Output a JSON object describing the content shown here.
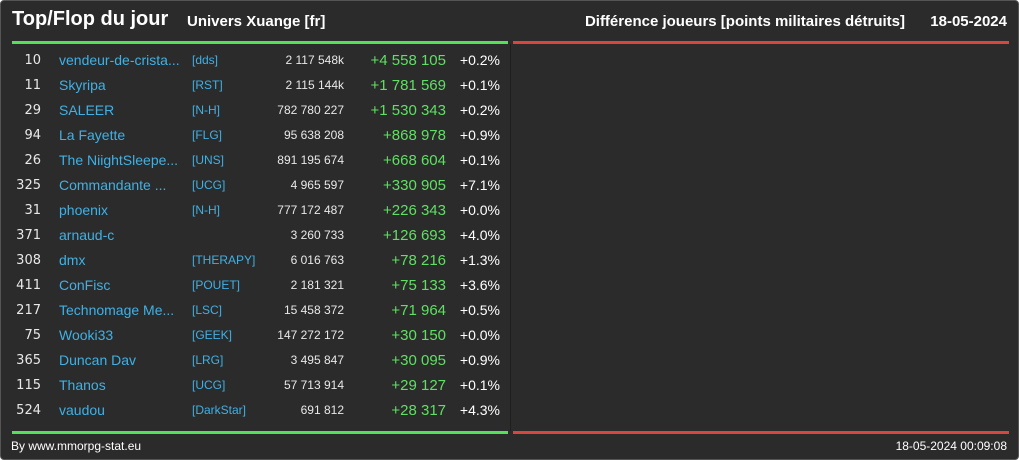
{
  "header": {
    "title": "Top/Flop du jour",
    "universe": "Univers Xuange [fr]",
    "metric": "Différence joueurs [points militaires détruits]",
    "date": "18-05-2024"
  },
  "colors": {
    "top_bar": "#55e05a",
    "flop_bar": "#d8473f",
    "name": "#3fb1e6",
    "delta": "#5ee062"
  },
  "top_rows": [
    {
      "rank": "10",
      "name": "vendeur-de-crista...",
      "alliance": "[dds]",
      "points": "2 117 548k",
      "delta": "+4 558 105",
      "pct": "+0.2%"
    },
    {
      "rank": "11",
      "name": "Skyripa",
      "alliance": "[RST]",
      "points": "2 115 144k",
      "delta": "+1 781 569",
      "pct": "+0.1%"
    },
    {
      "rank": "29",
      "name": "SALEER",
      "alliance": "[N-H]",
      "points": "782 780 227",
      "delta": "+1 530 343",
      "pct": "+0.2%"
    },
    {
      "rank": "94",
      "name": "La Fayette",
      "alliance": "[FLG]",
      "points": "95 638 208",
      "delta": "+868 978",
      "pct": "+0.9%"
    },
    {
      "rank": "26",
      "name": "The NiightSleepe...",
      "alliance": "[UNS]",
      "points": "891 195 674",
      "delta": "+668 604",
      "pct": "+0.1%"
    },
    {
      "rank": "325",
      "name": "Commandante ...",
      "alliance": "[UCG]",
      "points": "4 965 597",
      "delta": "+330 905",
      "pct": "+7.1%"
    },
    {
      "rank": "31",
      "name": "phoenix",
      "alliance": "[N-H]",
      "points": "777 172 487",
      "delta": "+226 343",
      "pct": "+0.0%"
    },
    {
      "rank": "371",
      "name": "arnaud-c",
      "alliance": "",
      "points": "3 260 733",
      "delta": "+126 693",
      "pct": "+4.0%"
    },
    {
      "rank": "308",
      "name": "dmx",
      "alliance": "[THERAPY]",
      "points": "6 016 763",
      "delta": "+78 216",
      "pct": "+1.3%"
    },
    {
      "rank": "411",
      "name": "ConFisc",
      "alliance": "[POUET]",
      "points": "2 181 321",
      "delta": "+75 133",
      "pct": "+3.6%"
    },
    {
      "rank": "217",
      "name": "Technomage Me...",
      "alliance": "[LSC]",
      "points": "15 458 372",
      "delta": "+71 964",
      "pct": "+0.5%"
    },
    {
      "rank": "75",
      "name": "Wooki33",
      "alliance": "[GEEK]",
      "points": "147 272 172",
      "delta": "+30 150",
      "pct": "+0.0%"
    },
    {
      "rank": "365",
      "name": "Duncan Dav",
      "alliance": "[LRG]",
      "points": "3 495 847",
      "delta": "+30 095",
      "pct": "+0.9%"
    },
    {
      "rank": "115",
      "name": "Thanos",
      "alliance": "[UCG]",
      "points": "57 713 914",
      "delta": "+29 127",
      "pct": "+0.1%"
    },
    {
      "rank": "524",
      "name": "vaudou",
      "alliance": "[DarkStar]",
      "points": "691 812",
      "delta": "+28 317",
      "pct": "+4.3%"
    }
  ],
  "footer": {
    "credit": "By www.mmorpg-stat.eu",
    "timestamp": "18-05-2024 00:09:08"
  }
}
